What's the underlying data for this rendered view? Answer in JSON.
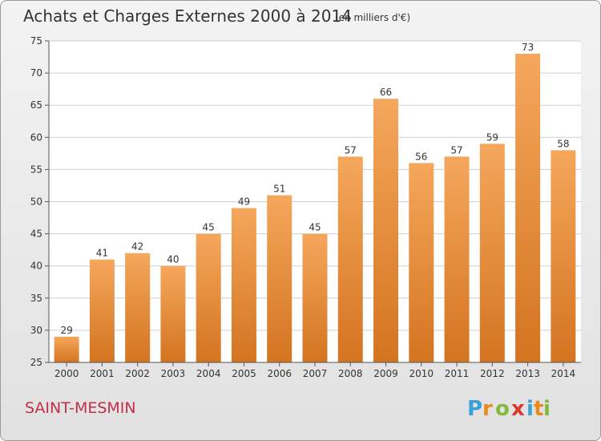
{
  "header": {
    "title": "Achats et Charges Externes 2000 à 2014",
    "unit": "(en milliers d'€)"
  },
  "footer": {
    "town": "SAINT-MESMIN",
    "logo_text": "Proxiti"
  },
  "colors": {
    "bar_top": "#f5a75c",
    "bar_bottom": "#d37420",
    "town_text": "#c0304a"
  },
  "chart_data": {
    "type": "bar",
    "title": "Achats et Charges Externes 2000 à 2014",
    "subtitle": "(en milliers d'€)",
    "xlabel": "",
    "ylabel": "",
    "categories": [
      "2000",
      "2001",
      "2002",
      "2003",
      "2004",
      "2005",
      "2006",
      "2007",
      "2008",
      "2009",
      "2010",
      "2011",
      "2012",
      "2013",
      "2014"
    ],
    "values": [
      29,
      41,
      42,
      40,
      45,
      49,
      51,
      45,
      57,
      66,
      56,
      57,
      59,
      73,
      58
    ],
    "ylim": [
      25,
      75
    ],
    "yticks": [
      25,
      30,
      35,
      40,
      45,
      50,
      55,
      60,
      65,
      70,
      75
    ],
    "grid": true,
    "legend": "none"
  }
}
